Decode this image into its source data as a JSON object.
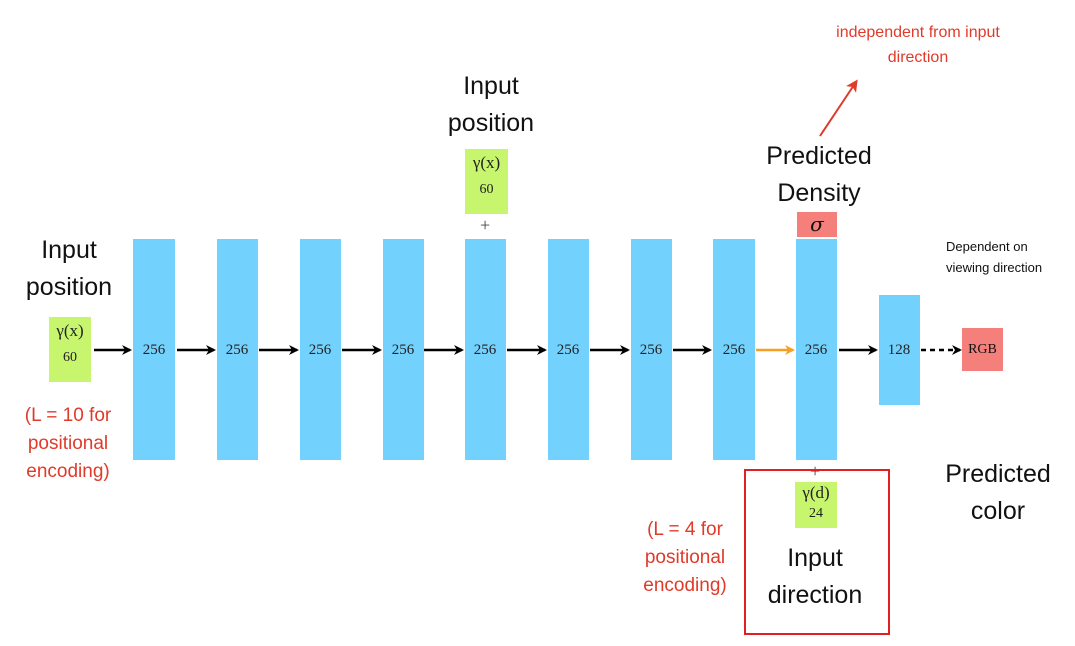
{
  "titles": {
    "input_position_left": [
      "Input",
      "position"
    ],
    "input_position_top": [
      "Input",
      "position"
    ],
    "predicted_density": [
      "Predicted",
      "Density"
    ],
    "input_direction": [
      "Input",
      "direction"
    ],
    "predicted_color": [
      "Predicted",
      "color"
    ]
  },
  "notes": {
    "independent": [
      "independent from input",
      "direction"
    ],
    "dependent": [
      "Dependent on",
      "viewing direction"
    ],
    "l10": [
      "(L = 10 for",
      "positional",
      "encoding)"
    ],
    "l4": [
      "(L = 4 for",
      "positional",
      "encoding)"
    ]
  },
  "encodings": {
    "gamma_x_symbol": "γ(x)",
    "gamma_x_dim": "60",
    "gamma_d_symbol": "γ(d)",
    "gamma_d_dim": "24"
  },
  "layers": [
    "256",
    "256",
    "256",
    "256",
    "256",
    "256",
    "256",
    "256",
    "256",
    "128"
  ],
  "sigma": "σ",
  "output": "RGB",
  "plus": "+",
  "colors": {
    "layer": "#73d2fd",
    "encoding": "#c8f56e",
    "output": "#f47f7b",
    "note": "#e03a2a",
    "highlight_box": "#e02020",
    "skip_arrow": "#f5a023"
  }
}
